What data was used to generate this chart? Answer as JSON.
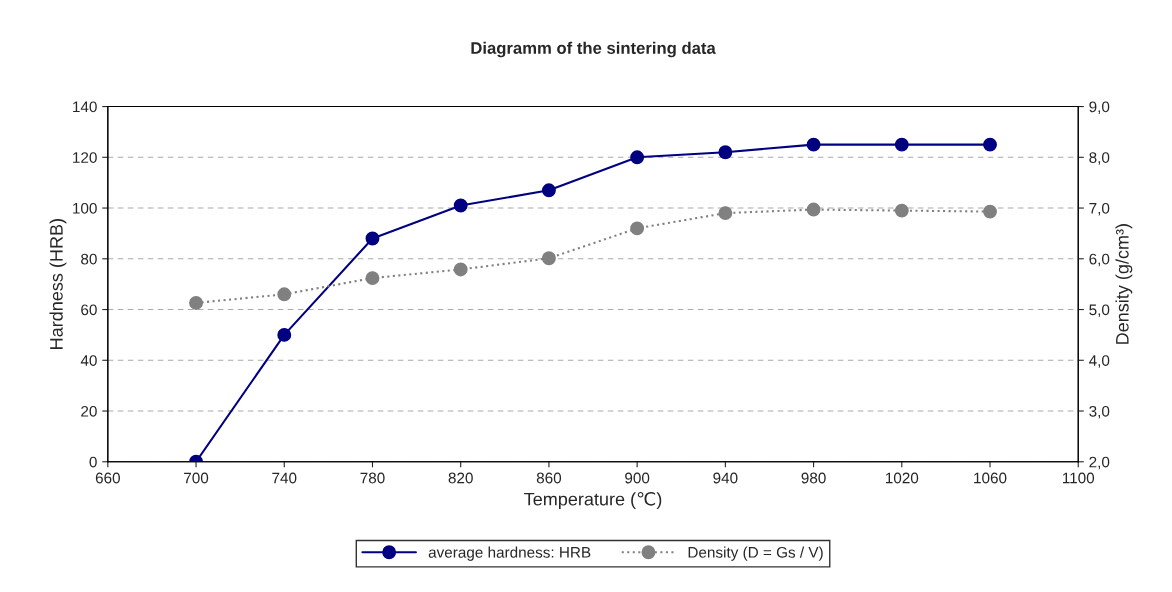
{
  "chart_data": {
    "type": "line",
    "title": "Diagramm of the sintering data",
    "xlabel": "Temperature (℃)",
    "ylabel": "Hardness (HRB)",
    "y2label": "Density (g/cm³)",
    "x": [
      700,
      740,
      780,
      820,
      860,
      900,
      940,
      980,
      1020,
      1060
    ],
    "series": [
      {
        "name": "average hardness: HRB",
        "color": "#000080",
        "line_style": "solid",
        "values": [
          0,
          50,
          88,
          101,
          107,
          120,
          122,
          125,
          125,
          125
        ]
      },
      {
        "name": "Density (D = Gs / V)",
        "color": "#808080",
        "line_style": "dotted",
        "axis": "y2",
        "values": [
          5.13,
          5.3,
          5.62,
          5.79,
          6.01,
          6.6,
          6.9,
          6.97,
          6.95,
          6.93
        ]
      }
    ],
    "xlim": [
      660,
      1100
    ],
    "xticks": [
      660,
      700,
      740,
      780,
      820,
      860,
      900,
      940,
      980,
      1020,
      1060,
      1100
    ],
    "ylim": [
      0,
      140
    ],
    "yticks": [
      0,
      20,
      40,
      60,
      80,
      100,
      120,
      140
    ],
    "y2lim": [
      2,
      9
    ],
    "y2ticks": [
      {
        "value": 2,
        "label": "2,0"
      },
      {
        "value": 3,
        "label": "3,0"
      },
      {
        "value": 4,
        "label": "4,0"
      },
      {
        "value": 5,
        "label": "5,0"
      },
      {
        "value": 6,
        "label": "6,0"
      },
      {
        "value": 7,
        "label": "7,0"
      },
      {
        "value": 8,
        "label": "8,0"
      },
      {
        "value": 9,
        "label": "9,0"
      }
    ],
    "grid": "y",
    "marker": "circle",
    "legend": "bottom"
  }
}
